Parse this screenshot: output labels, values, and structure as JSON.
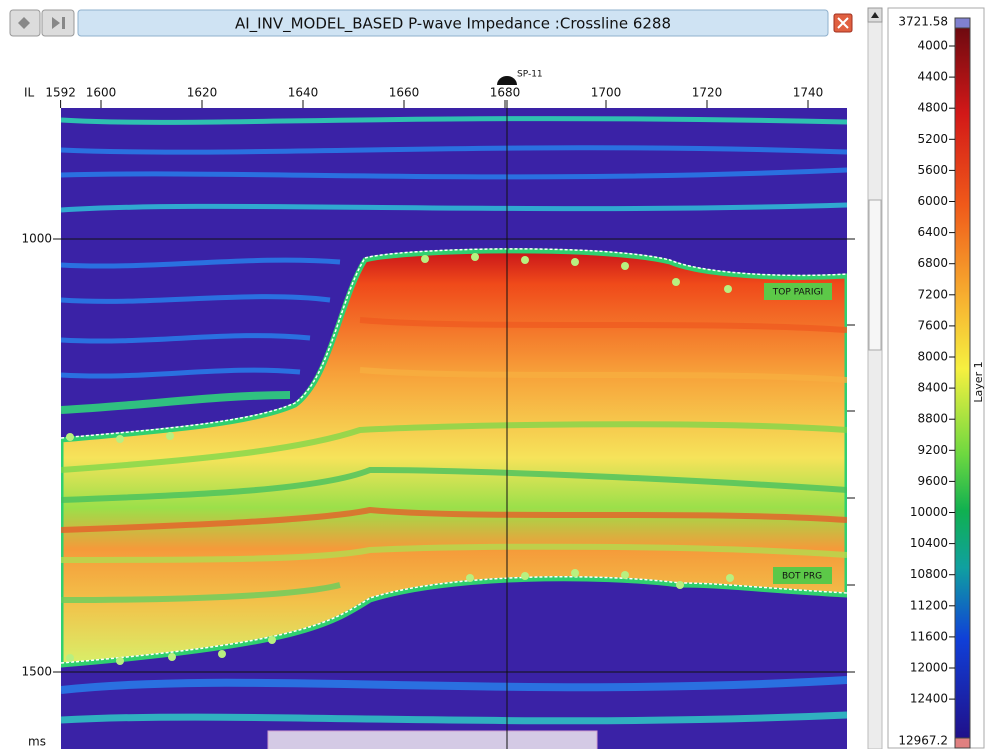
{
  "window": {
    "title": "AI_INV_MODEL_BASED P-wave Impedance :Crossline 6288"
  },
  "section": {
    "x_axis": {
      "label": "IL",
      "ticks": [
        1592,
        1600,
        1620,
        1640,
        1660,
        1680,
        1700,
        1720,
        1740
      ]
    },
    "well": "SP-11",
    "y_axis": {
      "ticks": [
        1000,
        1500
      ],
      "unit": "ms"
    },
    "horizons": [
      "TOP PARIGI",
      "BOT PRG"
    ]
  },
  "colorbar": {
    "max": "3721.58",
    "ticks": [
      4000,
      4400,
      4800,
      5200,
      5600,
      6000,
      6400,
      6800,
      7200,
      7600,
      8000,
      8400,
      8800,
      9200,
      9600,
      10000,
      10400,
      10800,
      11200,
      11600,
      12000,
      12400
    ],
    "min": "12967.2",
    "label": "Layer 1"
  }
}
